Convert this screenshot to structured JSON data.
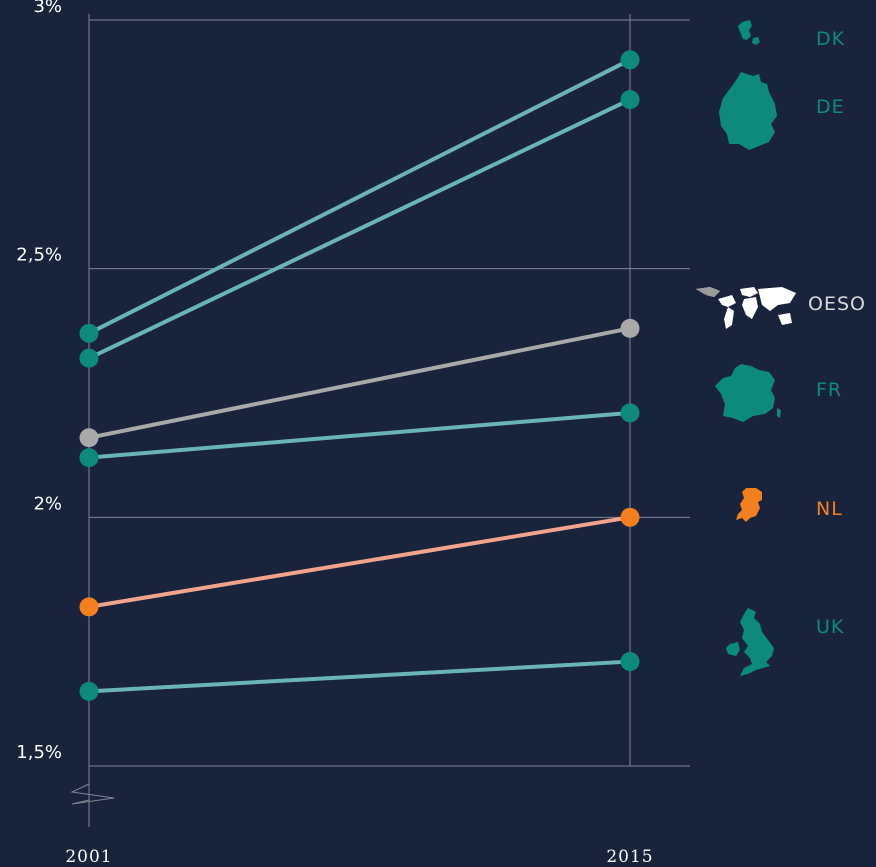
{
  "chart_data": {
    "type": "line",
    "x": [
      "2001",
      "2015"
    ],
    "ylim": [
      1.5,
      3.0
    ],
    "yticks": [
      {
        "value": 3.0,
        "label": "3%"
      },
      {
        "value": 2.5,
        "label": "2,5%"
      },
      {
        "value": 2.0,
        "label": "2%"
      },
      {
        "value": 1.5,
        "label": "1,5%"
      }
    ],
    "y_axis_break": true,
    "grid": true,
    "series": [
      {
        "name": "DK",
        "values": [
          2.37,
          2.92
        ],
        "color": "#0e8a7c",
        "line_color": "#6ab3b8",
        "icon": "denmark-map-icon"
      },
      {
        "name": "DE",
        "values": [
          2.32,
          2.84
        ],
        "color": "#0e8a7c",
        "line_color": "#6ab3b8",
        "icon": "germany-map-icon"
      },
      {
        "name": "OESO",
        "values": [
          2.16,
          2.38
        ],
        "color": "#a9a9a9",
        "line_color": "#a9a9a9",
        "icon": "world-map-icon"
      },
      {
        "name": "FR",
        "values": [
          2.12,
          2.21
        ],
        "color": "#0e8a7c",
        "line_color": "#6ab3b8",
        "icon": "france-map-icon"
      },
      {
        "name": "NL",
        "values": [
          1.82,
          2.0
        ],
        "color": "#f47f20",
        "line_color": "#f2a38e",
        "icon": "netherlands-map-icon"
      },
      {
        "name": "UK",
        "values": [
          1.65,
          1.71
        ],
        "color": "#0e8a7c",
        "line_color": "#6ab3b8",
        "icon": "uk-map-icon"
      }
    ]
  }
}
